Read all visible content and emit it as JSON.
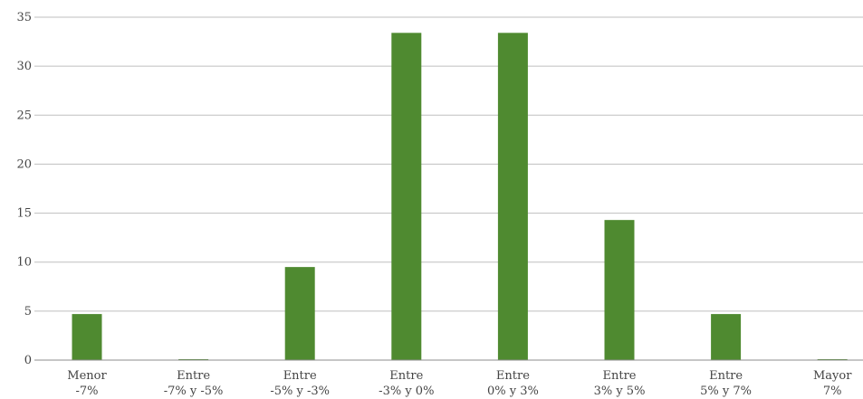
{
  "chart_data": {
    "type": "bar",
    "categories": [
      [
        "Menor",
        "-7%"
      ],
      [
        "Entre",
        "-7% y -5%"
      ],
      [
        "Entre",
        "-5% y -3%"
      ],
      [
        "Entre",
        "-3% y 0%"
      ],
      [
        "Entre",
        "0% y 3%"
      ],
      [
        "Entre",
        "3% y 5%"
      ],
      [
        "Entre",
        "5% y 7%"
      ],
      [
        "Mayor",
        "7%"
      ]
    ],
    "values": [
      4.7,
      0,
      9.5,
      33.4,
      33.4,
      14.3,
      4.7,
      0
    ],
    "yticks": [
      0,
      5,
      10,
      15,
      20,
      25,
      30,
      35
    ],
    "ylim": [
      0,
      35
    ],
    "grid": true,
    "legend": "none",
    "bar_color": "#4f8a30",
    "title": "",
    "xlabel": "",
    "ylabel": ""
  }
}
